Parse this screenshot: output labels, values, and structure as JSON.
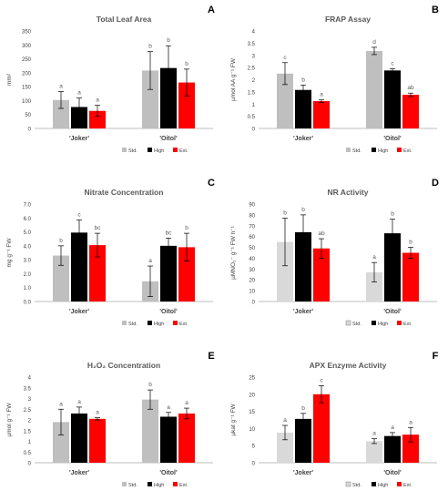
{
  "colors": {
    "std": "#bfbfbf",
    "std_light": "#d9d9d9",
    "high": "#000000",
    "ext": "#ff0000",
    "axis": "#bfbfbf",
    "text": "#404040",
    "letter": "#595959"
  },
  "chart_data": [
    {
      "panel": "A",
      "type": "bar",
      "title": "Total Leaf Area",
      "ylabel": "mm²",
      "ylim": [
        0,
        350
      ],
      "yticks": [
        "0",
        "50",
        "100",
        "150",
        "200",
        "250",
        "300",
        "350"
      ],
      "categories": [
        "'Joker'",
        "'Oitol'"
      ],
      "series": [
        {
          "name": "Std.",
          "values": [
            102,
            208
          ],
          "errors": [
            30,
            68
          ],
          "letters": [
            "a",
            "b"
          ]
        },
        {
          "name": "High",
          "values": [
            77,
            217
          ],
          "errors": [
            32,
            80
          ],
          "letters": [
            "a",
            "b"
          ]
        },
        {
          "name": "Ext.",
          "values": [
            63,
            165
          ],
          "errors": [
            20,
            48
          ],
          "letters": [
            "a",
            "b"
          ]
        }
      ],
      "legend": "bottom"
    },
    {
      "panel": "B",
      "type": "bar",
      "title": "FRAP Assay",
      "ylabel": "µmol AA g⁻¹ FW",
      "ylim": [
        0,
        4
      ],
      "yticks": [
        "0",
        "0.5",
        "1",
        "1.5",
        "2",
        "2.5",
        "3",
        "3.5",
        "4"
      ],
      "categories": [
        "'Joker'",
        "'Oitol'"
      ],
      "series": [
        {
          "name": "Std.",
          "values": [
            2.25,
            3.18
          ],
          "errors": [
            0.45,
            0.15
          ],
          "letters": [
            "c",
            "d"
          ]
        },
        {
          "name": "High",
          "values": [
            1.58,
            2.38
          ],
          "errors": [
            0.2,
            0.07
          ],
          "letters": [
            "b",
            "c"
          ]
        },
        {
          "name": "Ext.",
          "values": [
            1.12,
            1.38
          ],
          "errors": [
            0.05,
            0.07
          ],
          "letters": [
            "a",
            "ab"
          ]
        }
      ],
      "legend": "bottom"
    },
    {
      "panel": "C",
      "type": "bar",
      "title": "Nitrate Concentration",
      "ylabel": "mg g⁻¹ FW",
      "ylim": [
        0,
        7
      ],
      "yticks": [
        "0.0",
        "1.0",
        "2.0",
        "3.0",
        "4.0",
        "5.0",
        "6.0",
        "7.0"
      ],
      "categories": [
        "'Joker'",
        "'Oitol'"
      ],
      "series": [
        {
          "name": "Std.",
          "values": [
            3.3,
            1.45
          ],
          "errors": [
            0.7,
            1.1
          ],
          "letters": [
            "b",
            "a"
          ]
        },
        {
          "name": "High",
          "values": [
            4.95,
            4.0
          ],
          "errors": [
            0.9,
            0.55
          ],
          "letters": [
            "c",
            "bc"
          ]
        },
        {
          "name": "Ext.",
          "values": [
            4.05,
            3.9
          ],
          "errors": [
            0.85,
            1.0
          ],
          "letters": [
            "bc",
            "b"
          ]
        }
      ],
      "legend": "bottom"
    },
    {
      "panel": "D",
      "type": "bar",
      "title": "NR Activity",
      "ylabel": "µMNO₂⁻ g⁻¹ FW h⁻¹",
      "ylim": [
        0,
        90
      ],
      "yticks": [
        "0",
        "10",
        "20",
        "30",
        "40",
        "50",
        "60",
        "70",
        "80",
        "90"
      ],
      "categories": [
        "'Joker'",
        "'Oitol'"
      ],
      "series": [
        {
          "name": "Std.",
          "values": [
            55,
            27
          ],
          "errors": [
            22,
            9
          ],
          "letters": [
            "b",
            "a"
          ]
        },
        {
          "name": "High",
          "values": [
            64,
            63
          ],
          "errors": [
            16,
            13
          ],
          "letters": [
            "b",
            "b"
          ]
        },
        {
          "name": "Ext.",
          "values": [
            49,
            45
          ],
          "errors": [
            9,
            5
          ],
          "letters": [
            "ab",
            "b"
          ]
        }
      ],
      "legend": "bottom"
    },
    {
      "panel": "E",
      "type": "bar",
      "title": "H₂O₂ Concentration",
      "ylabel": "µmol g⁻¹ FW",
      "ylim": [
        0,
        4
      ],
      "yticks": [
        "0",
        "0.5",
        "1",
        "1.5",
        "2",
        "2.5",
        "3",
        "3.5",
        "4"
      ],
      "categories": [
        "'Joker'",
        "'Oitol'"
      ],
      "series": [
        {
          "name": "Std.",
          "values": [
            1.9,
            2.95
          ],
          "errors": [
            0.6,
            0.45
          ],
          "letters": [
            "a",
            "b"
          ]
        },
        {
          "name": "High",
          "values": [
            2.3,
            2.15
          ],
          "errors": [
            0.3,
            0.2
          ],
          "letters": [
            "a",
            "a"
          ]
        },
        {
          "name": "Ext.",
          "values": [
            2.05,
            2.3
          ],
          "errors": [
            0.05,
            0.25
          ],
          "letters": [
            "a",
            "a"
          ]
        }
      ],
      "legend": "bottom"
    },
    {
      "panel": "F",
      "type": "bar",
      "title": "APX Enzyme Activity",
      "ylabel": "µkat g⁻¹ FW",
      "ylim": [
        0,
        25
      ],
      "yticks": [
        "0",
        "5",
        "10",
        "15",
        "20",
        "25"
      ],
      "categories": [
        "'Joker'",
        "'Oitol'"
      ],
      "series": [
        {
          "name": "Std.",
          "values": [
            8.8,
            6.3
          ],
          "errors": [
            2.1,
            0.7
          ],
          "letters": [
            "a",
            "a"
          ]
        },
        {
          "name": "High",
          "values": [
            12.8,
            7.8
          ],
          "errors": [
            1.6,
            1.0
          ],
          "letters": [
            "b",
            "a"
          ]
        },
        {
          "name": "Ext.",
          "values": [
            20.0,
            8.2
          ],
          "errors": [
            2.5,
            2.1
          ],
          "letters": [
            "c",
            "a"
          ]
        }
      ],
      "legend": "bottom"
    }
  ]
}
